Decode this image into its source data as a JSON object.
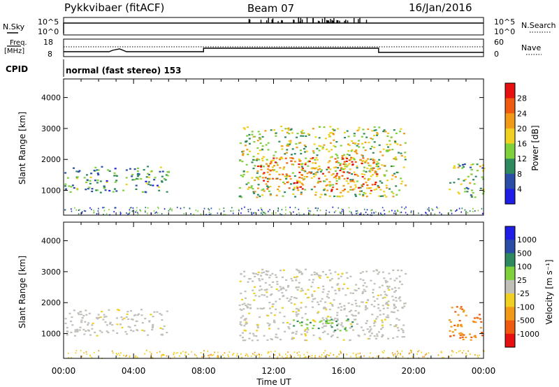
{
  "header": {
    "station": "Pykkvibaer (fitACF)",
    "beam": "Beam 07",
    "date": "16/Jan/2016"
  },
  "nsky_panel": {
    "left_label": "N.Sky",
    "right_label": "N.Search",
    "left_ticks": [
      "10^5",
      "10^0"
    ],
    "right_ticks": [
      "10^5",
      "10^0"
    ]
  },
  "freq_panel": {
    "left_label_line1": "Freq.",
    "left_label_line2": "[MHz]",
    "right_label": "Nave",
    "left_ticks": [
      "18",
      "8"
    ],
    "right_ticks": [
      "60",
      "0"
    ]
  },
  "cpid": {
    "label": "CPID",
    "text": "normal (fast stereo) 153"
  },
  "colors": {
    "power_scale": [
      "#1e1ee6",
      "#2a4ea8",
      "#2e8a5e",
      "#7ed13a",
      "#f0d020",
      "#f09a18",
      "#f05a10",
      "#e61010"
    ],
    "velocity_scale": [
      "#e61010",
      "#f05a10",
      "#f09a18",
      "#f0d020",
      "#c0c0b8",
      "#7ed13a",
      "#2e8a5e",
      "#2a4ea8",
      "#1e1ee6"
    ]
  },
  "chart_data": [
    {
      "type": "heatmap",
      "name": "power",
      "ylabel": "Slant Range [km]",
      "ylim": [
        200,
        4600
      ],
      "yticks": [
        "1000",
        "2000",
        "3000",
        "4000"
      ],
      "xlim": [
        0,
        24
      ],
      "colorbar_label": "Power [dB]",
      "colorbar_ticks": [
        "4",
        "8",
        "12",
        "16",
        "20",
        "24",
        "28"
      ],
      "echo_regions": [
        {
          "t0": 0.0,
          "t1": 6.0,
          "r0": 950,
          "r1": 1800,
          "value": 10
        },
        {
          "t0": 10.0,
          "t1": 19.5,
          "r0": 800,
          "r1": 3100,
          "value": 16
        },
        {
          "t0": 11.0,
          "t1": 18.0,
          "r0": 1000,
          "r1": 2100,
          "value": 24
        },
        {
          "t0": 22.0,
          "t1": 24.0,
          "r0": 800,
          "r1": 1900,
          "value": 14
        }
      ]
    },
    {
      "type": "heatmap",
      "name": "velocity",
      "ylabel": "Slant Range [km]",
      "ylim": [
        200,
        4600
      ],
      "yticks": [
        "1000",
        "2000",
        "3000",
        "4000"
      ],
      "xlim": [
        0,
        24
      ],
      "xlabel": "Time UT",
      "xticks": [
        "00:00",
        "04:00",
        "08:00",
        "12:00",
        "16:00",
        "20:00",
        "00:00"
      ],
      "colorbar_label": "Velocity [m s⁻¹]",
      "colorbar_ticks": [
        "1000",
        "500",
        "100",
        "25",
        "-25",
        "-100",
        "-500",
        "-1000"
      ],
      "echo_regions": [
        {
          "t0": 0.0,
          "t1": 6.0,
          "r0": 950,
          "r1": 1800,
          "value": 0
        },
        {
          "t0": 10.0,
          "t1": 19.5,
          "r0": 800,
          "r1": 3100,
          "value": 0
        },
        {
          "t0": 13.0,
          "t1": 16.5,
          "r0": 1100,
          "r1": 1500,
          "value": 60
        },
        {
          "t0": 22.0,
          "t1": 24.0,
          "r0": 800,
          "r1": 1900,
          "value": -120
        }
      ]
    }
  ]
}
